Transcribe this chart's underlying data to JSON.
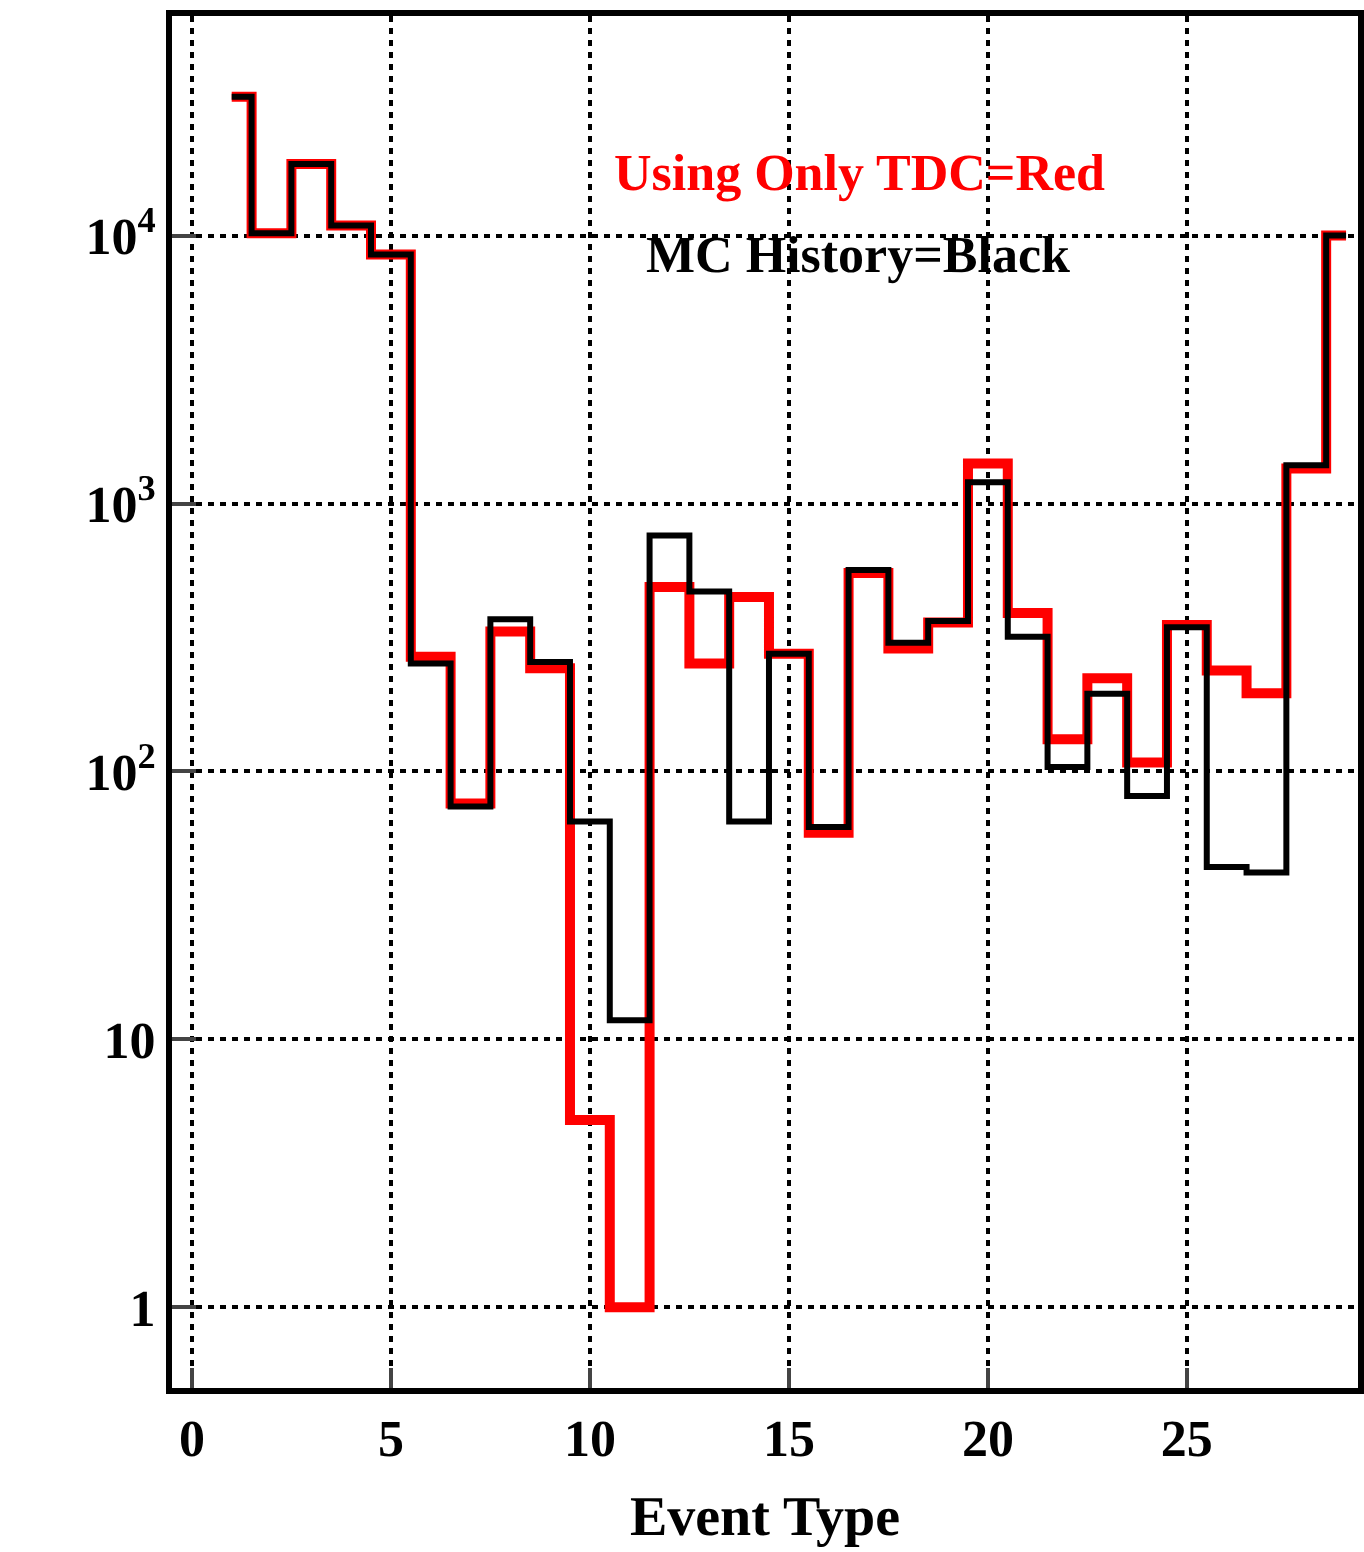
{
  "chart_data": {
    "type": "step",
    "xlabel": "Event Type",
    "x": [
      1,
      2,
      3,
      4,
      5,
      6,
      7,
      8,
      9,
      10,
      11,
      12,
      13,
      14,
      15,
      16,
      17,
      18,
      19,
      20,
      21,
      22,
      23,
      24,
      25,
      26,
      27,
      28,
      29
    ],
    "series": [
      {
        "color": "#ff0000",
        "values": [
          33000,
          10200,
          18500,
          10900,
          8500,
          268,
          76,
          333,
          243,
          5,
          1,
          488,
          253,
          448,
          275,
          59,
          550,
          288,
          360,
          1410,
          390,
          132,
          223,
          108,
          352,
          238,
          196,
          1350,
          10000
        ]
      },
      {
        "color": "#000000",
        "values": [
          33000,
          10200,
          18500,
          10900,
          8500,
          253,
          74,
          370,
          256,
          65,
          11.8,
          760,
          470,
          65,
          275,
          62,
          565,
          302,
          364,
          1200,
          318,
          104,
          195,
          81,
          345,
          44,
          42,
          1390,
          10000
        ]
      }
    ],
    "annotations": [
      "Using Only TDC=Red",
      "MC History=Black"
    ],
    "log": true,
    "xlim": [
      -0.5,
      29.3
    ],
    "ylim": [
      0.5,
      66000
    ],
    "xticks": [
      0,
      5,
      10,
      15,
      20,
      25
    ],
    "yticks": [
      1,
      10,
      {
        "value": 100,
        "label": "10$^{2}$"
      },
      {
        "value": 1000,
        "label": "10$^{3}$"
      },
      {
        "value": 10000,
        "label": "10$^{4}$"
      }
    ],
    "grid": true
  }
}
